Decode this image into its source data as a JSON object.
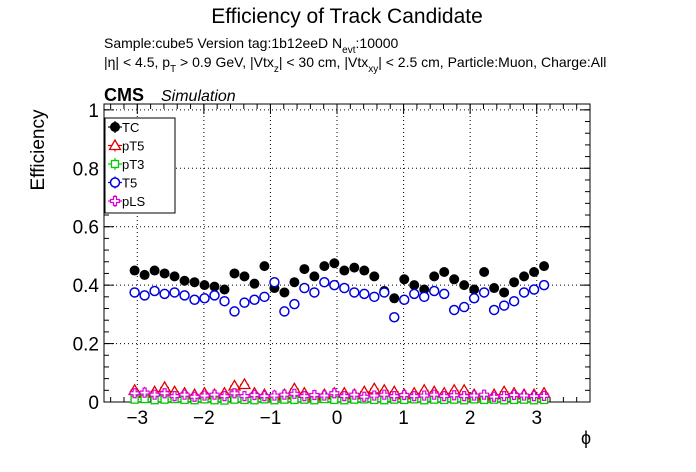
{
  "chart_data": {
    "type": "scatter",
    "title": "Efficiency of Track Candidate",
    "subtitle_line1": "Sample:cube5   Version tag:1b12eeD  N",
    "subtitle_line1_sub": "evt",
    "subtitle_line1_end": ":10000",
    "subtitle_line2_parts": [
      "|η| < 4.5, p",
      "T",
      " > 0.9 GeV, |Vtx",
      "z",
      "| < 30 cm, |Vtx",
      "xy",
      "| < 2.5 cm, Particle:Muon, Charge:All"
    ],
    "cms_label": "CMS",
    "sim_label": "Simulation",
    "xlabel": "ϕ",
    "ylabel": "Efficiency",
    "xlim": [
      -3.5,
      3.8
    ],
    "ylim": [
      0,
      1.02
    ],
    "grid": true,
    "legend_position": "top-left",
    "xticks": [
      {
        "v": -3,
        "label": "−3"
      },
      {
        "v": -2,
        "label": "−2"
      },
      {
        "v": -1,
        "label": "−1"
      },
      {
        "v": 0,
        "label": "0"
      },
      {
        "v": 1,
        "label": "1"
      },
      {
        "v": 2,
        "label": "2"
      },
      {
        "v": 3,
        "label": "3"
      }
    ],
    "yticks": [
      {
        "v": 0,
        "label": "0"
      },
      {
        "v": 0.2,
        "label": "0.2"
      },
      {
        "v": 0.4,
        "label": "0.4"
      },
      {
        "v": 0.6,
        "label": "0.6"
      },
      {
        "v": 0.8,
        "label": "0.8"
      },
      {
        "v": 1,
        "label": "1"
      }
    ],
    "x": [
      -3.04,
      -2.89,
      -2.74,
      -2.59,
      -2.44,
      -2.29,
      -2.14,
      -1.99,
      -1.84,
      -1.69,
      -1.54,
      -1.39,
      -1.24,
      -1.09,
      -0.94,
      -0.79,
      -0.64,
      -0.49,
      -0.34,
      -0.19,
      -0.04,
      0.11,
      0.26,
      0.41,
      0.56,
      0.71,
      0.86,
      1.01,
      1.16,
      1.31,
      1.46,
      1.61,
      1.76,
      1.91,
      2.06,
      2.21,
      2.36,
      2.51,
      2.66,
      2.81,
      2.96,
      3.11
    ],
    "series": [
      {
        "name": "TC",
        "color": "#000000",
        "marker": "filled-circle",
        "values": [
          0.45,
          0.435,
          0.45,
          0.44,
          0.43,
          0.415,
          0.41,
          0.4,
          0.395,
          0.385,
          0.44,
          0.43,
          0.405,
          0.465,
          0.39,
          0.375,
          0.41,
          0.455,
          0.43,
          0.465,
          0.475,
          0.45,
          0.46,
          0.45,
          0.43,
          0.38,
          0.355,
          0.42,
          0.4,
          0.385,
          0.43,
          0.445,
          0.42,
          0.4,
          0.385,
          0.445,
          0.39,
          0.375,
          0.41,
          0.43,
          0.445,
          0.465
        ]
      },
      {
        "name": "pT5",
        "color": "#dd0000",
        "marker": "open-triangle",
        "values": [
          0.04,
          0.03,
          0.035,
          0.05,
          0.035,
          0.03,
          0.025,
          0.03,
          0.025,
          0.03,
          0.055,
          0.06,
          0.03,
          0.025,
          0.02,
          0.025,
          0.045,
          0.03,
          0.02,
          0.025,
          0.03,
          0.03,
          0.025,
          0.035,
          0.045,
          0.04,
          0.035,
          0.025,
          0.03,
          0.04,
          0.035,
          0.03,
          0.04,
          0.04,
          0.025,
          0.02,
          0.025,
          0.035,
          0.03,
          0.025,
          0.025,
          0.03
        ]
      },
      {
        "name": "pT3",
        "color": "#00cc00",
        "marker": "open-square",
        "values": [
          0.008,
          0.01,
          0.006,
          0.008,
          0.01,
          0.007,
          0.006,
          0.009,
          0.006,
          0.005,
          0.008,
          0.007,
          0.006,
          0.009,
          0.006,
          0.008,
          0.007,
          0.008,
          0.006,
          0.01,
          0.007,
          0.006,
          0.008,
          0.009,
          0.007,
          0.006,
          0.008,
          0.007,
          0.009,
          0.006,
          0.008,
          0.007,
          0.008,
          0.006,
          0.009,
          0.007,
          0.008,
          0.006,
          0.007,
          0.008,
          0.006,
          0.007
        ]
      },
      {
        "name": "T5",
        "color": "#0000dd",
        "marker": "open-circle",
        "values": [
          0.375,
          0.365,
          0.38,
          0.37,
          0.375,
          0.365,
          0.35,
          0.355,
          0.365,
          0.345,
          0.31,
          0.34,
          0.35,
          0.36,
          0.41,
          0.31,
          0.335,
          0.39,
          0.375,
          0.41,
          0.4,
          0.39,
          0.375,
          0.37,
          0.36,
          0.375,
          0.29,
          0.35,
          0.37,
          0.36,
          0.38,
          0.37,
          0.315,
          0.325,
          0.355,
          0.375,
          0.315,
          0.33,
          0.345,
          0.375,
          0.385,
          0.4
        ]
      },
      {
        "name": "pLS",
        "color": "#dd00dd",
        "marker": "open-cross",
        "values": [
          0.03,
          0.032,
          0.025,
          0.03,
          0.02,
          0.025,
          0.018,
          0.022,
          0.025,
          0.02,
          0.03,
          0.02,
          0.024,
          0.02,
          0.022,
          0.025,
          0.028,
          0.02,
          0.024,
          0.022,
          0.03,
          0.02,
          0.025,
          0.018,
          0.022,
          0.025,
          0.02,
          0.024,
          0.02,
          0.022,
          0.025,
          0.02,
          0.023,
          0.02,
          0.022,
          0.025,
          0.018,
          0.02,
          0.024,
          0.022,
          0.02,
          0.021
        ]
      }
    ]
  }
}
